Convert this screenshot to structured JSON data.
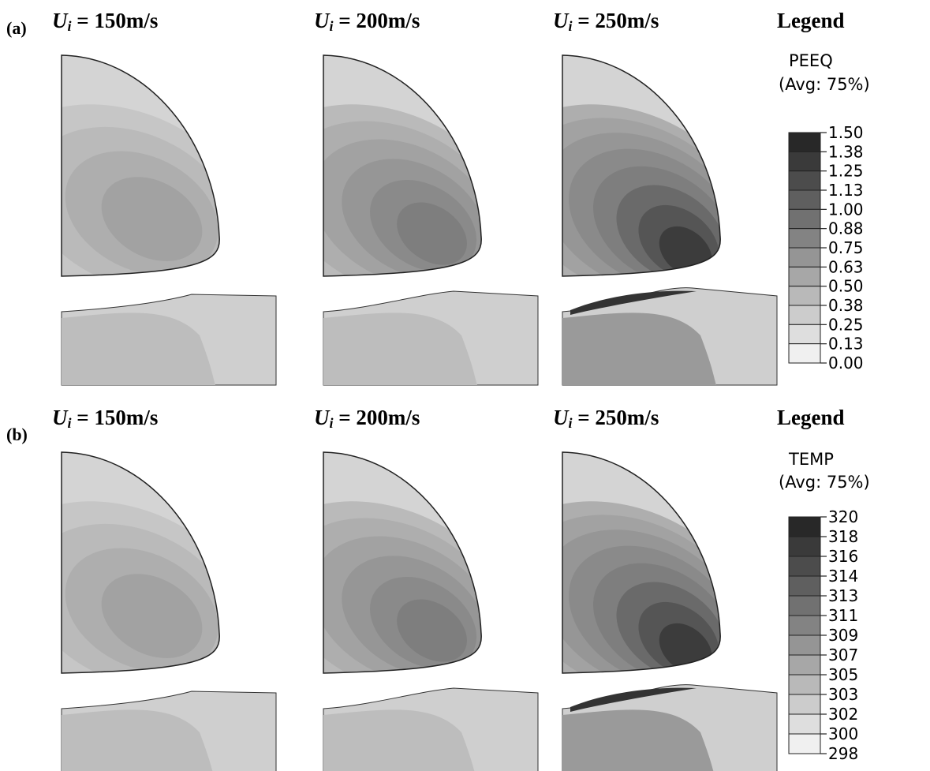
{
  "panels": [
    {
      "label": "(a)",
      "titles": [
        {
          "symbol": "U",
          "subscript": "i",
          "text": " = 150m/s"
        },
        {
          "symbol": "U",
          "subscript": "i",
          "text": " = 200m/s"
        },
        {
          "symbol": "U",
          "subscript": "i",
          "text": " = 250m/s"
        }
      ],
      "legend": {
        "title": "Legend",
        "variable": "PEEQ",
        "averaging": "(Avg: 75%)",
        "levels": [
          "1.50",
          "1.38",
          "1.25",
          "1.13",
          "1.00",
          "0.88",
          "0.75",
          "0.63",
          "0.50",
          "0.38",
          "0.25",
          "0.13",
          "0.00"
        ]
      }
    },
    {
      "label": "(b)",
      "titles": [
        {
          "symbol": "U",
          "subscript": "i",
          "text": " = 150m/s"
        },
        {
          "symbol": "U",
          "subscript": "i",
          "text": " = 200m/s"
        },
        {
          "symbol": "U",
          "subscript": "i",
          "text": " = 250m/s"
        }
      ],
      "legend": {
        "title": "Legend",
        "variable": "TEMP",
        "averaging": "(Avg: 75%)",
        "levels": [
          "320",
          "318",
          "316",
          "314",
          "313",
          "311",
          "309",
          "307",
          "305",
          "303",
          "302",
          "300",
          "298"
        ]
      }
    }
  ]
}
